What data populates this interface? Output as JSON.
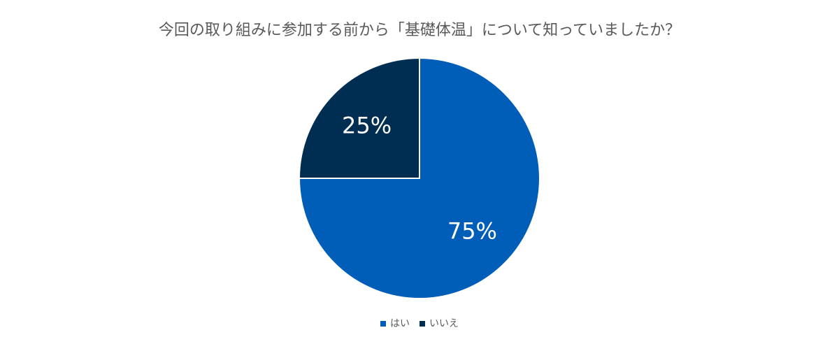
{
  "chart_data": {
    "type": "pie",
    "title": "今回の取り組みに参加する前から「基礎体温」について知っていましたか？",
    "categories": [
      "はい",
      "いいえ"
    ],
    "values": [
      75,
      25
    ],
    "labels": [
      "75%",
      "25%"
    ],
    "colors": [
      "#005EB8",
      "#002D52"
    ],
    "start_angle_deg": 0,
    "direction": "clockwise",
    "legend_position": "bottom"
  }
}
